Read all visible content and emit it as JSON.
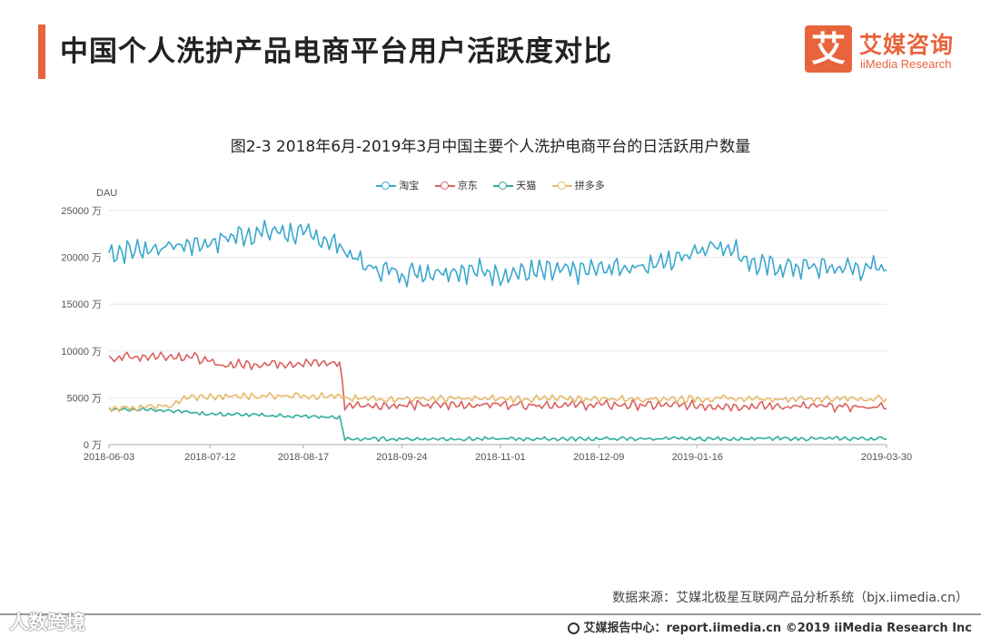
{
  "header": {
    "title": "中国个人洗护产品电商平台用户活跃度对比",
    "logo_mark": "艾",
    "logo_cn": "艾媒咨询",
    "logo_en": "iiMedia Research"
  },
  "colors": {
    "accent": "#e8643c",
    "taobao": "#3aa8cf",
    "jd": "#d9615f",
    "tmall": "#2fae98",
    "pdd": "#e8b96a"
  },
  "chart_data": {
    "type": "line",
    "title": "图2-3 2018年6月-2019年3月中国主要个人洗护电商平台的日活跃用户数量",
    "ylabel": "DAU",
    "ylim": [
      0,
      25000
    ],
    "y_ticks": [
      "0 万",
      "5000 万",
      "10000 万",
      "15000 万",
      "20000 万",
      "25000 万"
    ],
    "x_ticks": [
      "2018-06-03",
      "2018-07-12",
      "2018-08-17",
      "2018-09-24",
      "2018-11-01",
      "2018-12-09",
      "2019-01-16",
      "2019-03-30"
    ],
    "x_range": [
      "2018-06-03",
      "2019-03-30"
    ],
    "grid": "horizontal",
    "legend": "top-center",
    "series": [
      {
        "name": "淘宝",
        "color": "#3aa8cf",
        "keypoints": [
          [
            "2018-06-03",
            20500
          ],
          [
            "2018-06-20",
            21000
          ],
          [
            "2018-07-10",
            21500
          ],
          [
            "2018-07-25",
            22500
          ],
          [
            "2018-08-08",
            22800
          ],
          [
            "2018-08-25",
            22000
          ],
          [
            "2018-09-01",
            21000
          ],
          [
            "2018-09-10",
            19000
          ],
          [
            "2018-09-24",
            18300
          ],
          [
            "2018-10-15",
            18700
          ],
          [
            "2018-11-01",
            18300
          ],
          [
            "2018-12-01",
            18500
          ],
          [
            "2018-12-20",
            19000
          ],
          [
            "2019-01-05",
            19500
          ],
          [
            "2019-01-16",
            21000
          ],
          [
            "2019-01-28",
            21300
          ],
          [
            "2019-02-08",
            19000
          ],
          [
            "2019-03-30",
            18800
          ]
        ],
        "noise": 1500
      },
      {
        "name": "京东",
        "color": "#d9615f",
        "keypoints": [
          [
            "2018-06-03",
            9300
          ],
          [
            "2018-06-25",
            9500
          ],
          [
            "2018-07-05",
            9400
          ],
          [
            "2018-07-15",
            8500
          ],
          [
            "2018-08-10",
            8700
          ],
          [
            "2018-08-31",
            8700
          ],
          [
            "2018-09-02",
            4200
          ],
          [
            "2018-10-01",
            4200
          ],
          [
            "2018-11-01",
            4300
          ],
          [
            "2019-01-01",
            4200
          ],
          [
            "2019-03-30",
            4000
          ]
        ],
        "noise": 600
      },
      {
        "name": "天猫",
        "color": "#2fae98",
        "keypoints": [
          [
            "2018-06-03",
            3800
          ],
          [
            "2018-06-25",
            3700
          ],
          [
            "2018-07-10",
            3300
          ],
          [
            "2018-08-31",
            2900
          ],
          [
            "2018-09-02",
            600
          ],
          [
            "2019-03-30",
            650
          ]
        ],
        "noise": 250
      },
      {
        "name": "拼多多",
        "color": "#e8b96a",
        "keypoints": [
          [
            "2018-06-03",
            3900
          ],
          [
            "2018-06-28",
            4100
          ],
          [
            "2018-07-01",
            5000
          ],
          [
            "2018-08-15",
            5300
          ],
          [
            "2018-08-31",
            5100
          ],
          [
            "2018-09-02",
            4900
          ],
          [
            "2019-03-30",
            4900
          ]
        ],
        "noise": 450
      }
    ]
  },
  "source": "数据来源：艾媒北极星互联网产品分析系统（bjx.iimedia.cn）",
  "footer": {
    "text": "艾媒报告中心：report.iimedia.cn ©2019 iiMedia Research Inc",
    "watermark": "人数跨境"
  }
}
